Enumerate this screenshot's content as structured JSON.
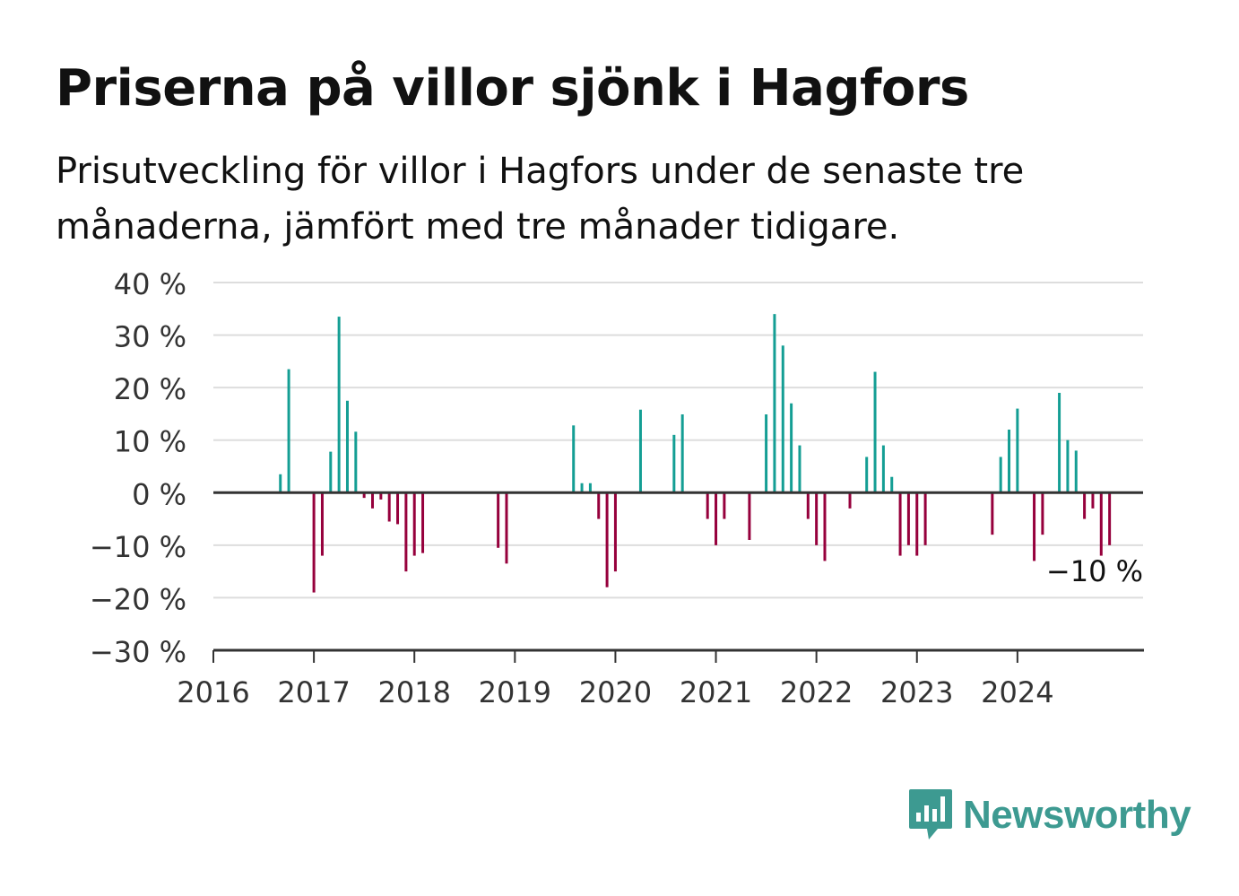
{
  "title": "Priserna på villor sjönk i Hagfors",
  "subtitle": "Prisutveckling för villor i Hagfors under de senaste tre månaderna, jämfört med tre månader tidigare.",
  "brand": {
    "name": "Newsworthy",
    "color": "#3d9a91",
    "icon": "bar-chart-speech-bubble-icon"
  },
  "colors": {
    "positive": "#149e94",
    "negative": "#96003c",
    "grid": "#dddddd",
    "axis": "#333333"
  },
  "chart_data": {
    "type": "bar",
    "xlim": [
      2016,
      2025.25
    ],
    "ylim": [
      -30,
      40
    ],
    "yticks": [
      {
        "value": 40,
        "label": "40 %"
      },
      {
        "value": 30,
        "label": "30 %"
      },
      {
        "value": 20,
        "label": "20 %"
      },
      {
        "value": 10,
        "label": "10 %"
      },
      {
        "value": 0,
        "label": "0 %"
      },
      {
        "value": -10,
        "label": "−10 %"
      },
      {
        "value": -20,
        "label": "−20 %"
      },
      {
        "value": -30,
        "label": "−30 %"
      }
    ],
    "xticks": [
      {
        "value": 2016,
        "label": "2016"
      },
      {
        "value": 2017,
        "label": "2017"
      },
      {
        "value": 2018,
        "label": "2018"
      },
      {
        "value": 2019,
        "label": "2019"
      },
      {
        "value": 2020,
        "label": "2020"
      },
      {
        "value": 2021,
        "label": "2021"
      },
      {
        "value": 2022,
        "label": "2022"
      },
      {
        "value": 2023,
        "label": "2023"
      },
      {
        "value": 2024,
        "label": "2024"
      }
    ],
    "grid": true,
    "points": [
      [
        "2016-09",
        3.5
      ],
      [
        "2016-10",
        23.5
      ],
      [
        "2017-01",
        -19
      ],
      [
        "2017-02",
        -12
      ],
      [
        "2017-03",
        7.8
      ],
      [
        "2017-04",
        33.5
      ],
      [
        "2017-05",
        17.5
      ],
      [
        "2017-06",
        11.6
      ],
      [
        "2017-07",
        -1
      ],
      [
        "2017-08",
        -3
      ],
      [
        "2017-09",
        -1.3
      ],
      [
        "2017-10",
        -5.5
      ],
      [
        "2017-11",
        -6
      ],
      [
        "2017-12",
        -15
      ],
      [
        "2018-01",
        -12
      ],
      [
        "2018-02",
        -11.5
      ],
      [
        "2018-11",
        -10.5
      ],
      [
        "2018-12",
        -13.5
      ],
      [
        "2019-08",
        12.8
      ],
      [
        "2019-09",
        1.8
      ],
      [
        "2019-10",
        1.8
      ],
      [
        "2019-11",
        -5
      ],
      [
        "2019-12",
        -18
      ],
      [
        "2020-01",
        -15
      ],
      [
        "2020-04",
        15.8
      ],
      [
        "2020-08",
        11
      ],
      [
        "2020-09",
        14.9
      ],
      [
        "2020-12",
        -5
      ],
      [
        "2021-01",
        -10
      ],
      [
        "2021-02",
        -5
      ],
      [
        "2021-05",
        -9
      ],
      [
        "2021-07",
        14.9
      ],
      [
        "2021-08",
        34
      ],
      [
        "2021-09",
        28
      ],
      [
        "2021-10",
        17
      ],
      [
        "2021-11",
        9
      ],
      [
        "2021-12",
        -5
      ],
      [
        "2022-01",
        -10
      ],
      [
        "2022-02",
        -13
      ],
      [
        "2022-05",
        -3
      ],
      [
        "2022-07",
        6.8
      ],
      [
        "2022-08",
        23
      ],
      [
        "2022-09",
        9
      ],
      [
        "2022-10",
        3
      ],
      [
        "2022-11",
        -12
      ],
      [
        "2022-12",
        -10
      ],
      [
        "2023-01",
        -12
      ],
      [
        "2023-02",
        -10
      ],
      [
        "2023-10",
        -8
      ],
      [
        "2023-11",
        6.8
      ],
      [
        "2023-12",
        12
      ],
      [
        "2024-01",
        16
      ],
      [
        "2024-03",
        -13
      ],
      [
        "2024-04",
        -8
      ],
      [
        "2024-06",
        19
      ],
      [
        "2024-07",
        10
      ],
      [
        "2024-08",
        8
      ],
      [
        "2024-09",
        -5
      ],
      [
        "2024-10",
        -3
      ],
      [
        "2024-11",
        -12
      ],
      [
        "2024-12",
        -10
      ]
    ],
    "annotation": {
      "label": "−10 %",
      "date": "2024-12",
      "value": -10
    }
  }
}
